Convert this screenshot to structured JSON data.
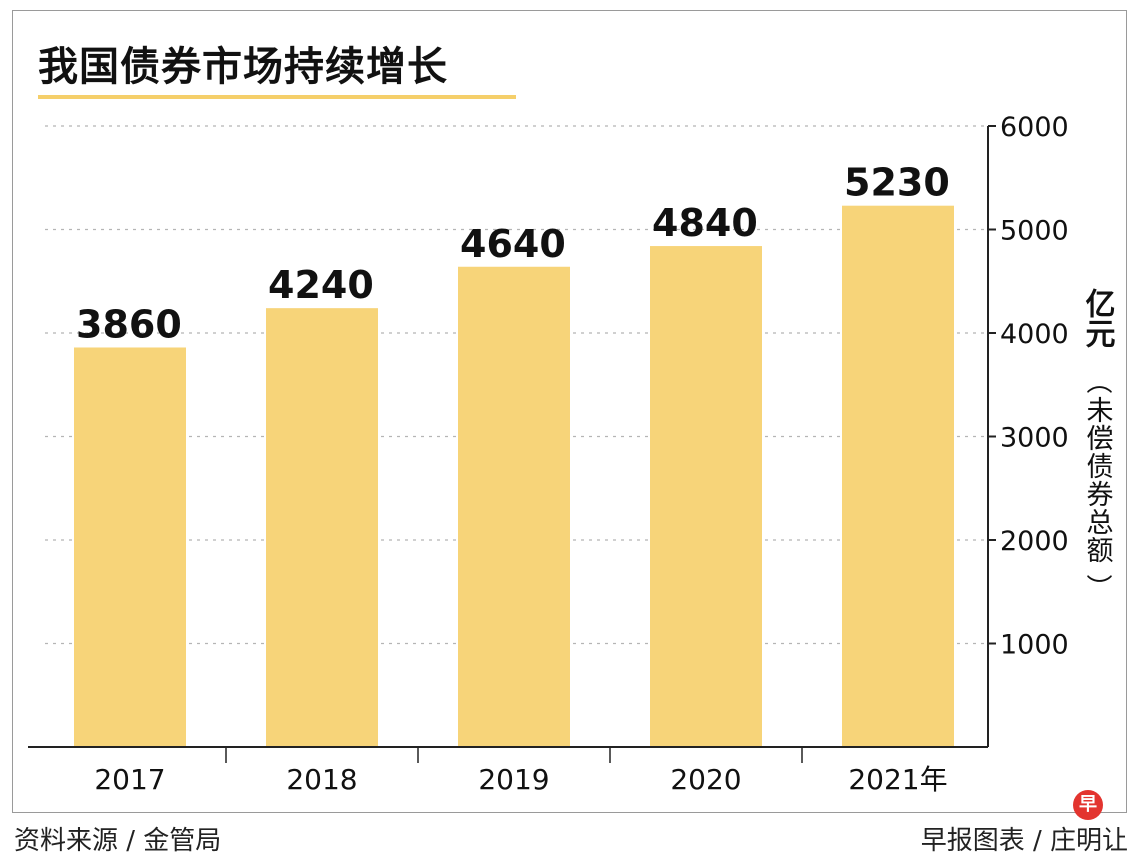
{
  "chart_data": {
    "type": "bar",
    "title": "我国债券市场持续增长",
    "categories": [
      "2017",
      "2018",
      "2019",
      "2020",
      "2021年"
    ],
    "values": [
      3860,
      4240,
      4640,
      4840,
      5230
    ],
    "ylabel_unit": "亿元",
    "ylabel_paren_open": "（",
    "ylabel_text": "未偿债券总额",
    "ylabel_paren_close": "）",
    "ylim": [
      0,
      6000
    ],
    "yticks": [
      1000,
      2000,
      3000,
      4000,
      5000,
      6000
    ],
    "y_axis_position": "right",
    "grid": true,
    "bar_color": "#f7d479"
  },
  "footer": {
    "source": "资料来源 / 金管局",
    "credit": "早报图表 / 庄明让",
    "logo_text": "早"
  }
}
